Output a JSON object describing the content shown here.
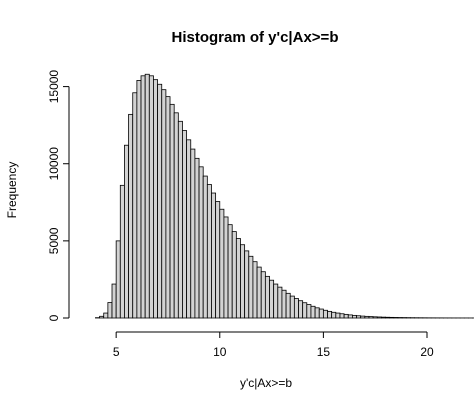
{
  "chart_data": {
    "type": "histogram",
    "title": "Histogram of y'c|Ax>=b",
    "xlabel": "y'c|Ax>=b",
    "ylabel": "Frequency",
    "xlim": [
      3.4,
      20
    ],
    "ylim": [
      0,
      16400
    ],
    "x_ticks": [
      5,
      10,
      15,
      20
    ],
    "y_ticks": [
      0,
      5000,
      10000,
      15000
    ],
    "bar_fill": "#d3d3d3",
    "bar_stroke": "#000000",
    "bin_width": 0.2,
    "bin_start": 3.4,
    "values": [
      0,
      0,
      0,
      20,
      110,
      320,
      1000,
      2200,
      5000,
      8600,
      11200,
      13200,
      14600,
      15400,
      15700,
      15800,
      15700,
      15450,
      15150,
      14800,
      14350,
      13850,
      13300,
      12750,
      12150,
      11550,
      10950,
      10350,
      9800,
      9200,
      8650,
      8100,
      7550,
      7050,
      6550,
      6050,
      5600,
      5150,
      4750,
      4350,
      4000,
      3650,
      3300,
      3000,
      2700,
      2450,
      2200,
      2000,
      1800,
      1600,
      1420,
      1260,
      1120,
      990,
      870,
      760,
      660,
      580,
      500,
      430,
      370,
      320,
      275,
      235,
      200,
      170,
      145,
      124,
      106,
      90,
      77,
      66,
      56,
      48,
      41,
      35,
      30,
      26,
      22,
      19,
      16,
      14,
      12,
      10,
      9,
      8,
      7,
      6,
      5,
      4,
      4,
      3,
      3,
      2,
      2,
      2,
      1,
      1,
      1,
      1,
      1,
      1,
      0,
      0,
      0,
      0,
      0,
      0,
      0,
      0,
      0,
      0,
      0,
      0,
      0,
      0,
      0,
      0,
      0,
      0,
      0,
      0,
      0,
      0,
      0,
      0,
      0,
      0,
      0,
      0,
      0,
      0,
      0
    ]
  }
}
